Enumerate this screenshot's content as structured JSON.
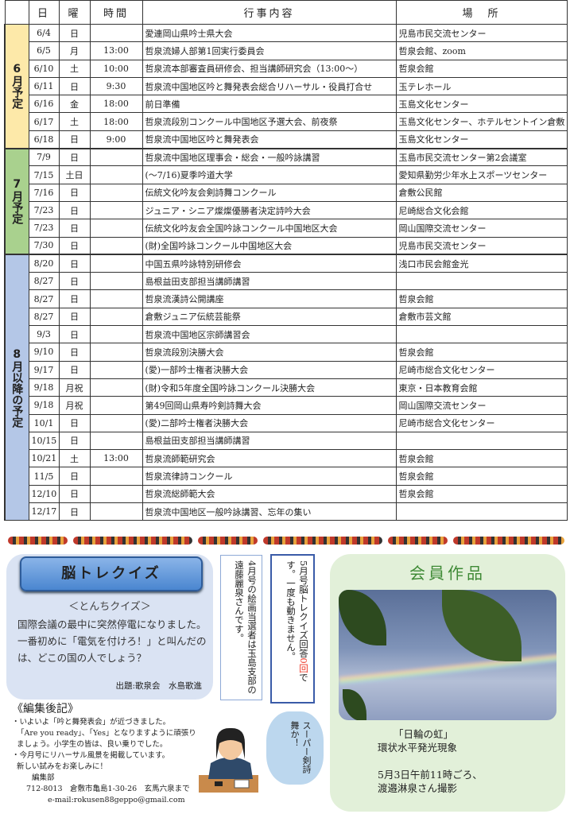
{
  "table": {
    "headers": [
      "",
      "日",
      "曜",
      "時間",
      "行事内容",
      "場　所"
    ],
    "groups": [
      {
        "label": "6月予定",
        "color": "#fde9a9",
        "rows": [
          [
            "6/4",
            "日",
            "",
            "愛連岡山県吟士県大会",
            "児島市民交流センター"
          ],
          [
            "6/5",
            "月",
            "13:00",
            "哲泉流婦人部第1回実行委員会",
            "哲泉会館、zoom"
          ],
          [
            "6/10",
            "土",
            "10:00",
            "哲泉流本部審査員研修会、担当講師研究会（13:00～）",
            "哲泉会館"
          ],
          [
            "6/11",
            "日",
            "9:30",
            "哲泉流中国地区吟と舞発表会総合リハーサル・役員打合せ",
            "玉テレホール"
          ],
          [
            "6/16",
            "金",
            "18:00",
            "前日準備",
            "玉島文化センター"
          ],
          [
            "6/17",
            "土",
            "18:00",
            "哲泉流段別コンクール中国地区予選大会、前夜祭",
            "玉島文化センター、ホテルセントイン倉敷"
          ],
          [
            "6/18",
            "日",
            "9:00",
            "哲泉流中国地区吟と舞発表会",
            "玉島文化センター"
          ]
        ]
      },
      {
        "label": "7月予定",
        "color": "#a9d18e",
        "rows": [
          [
            "7/9",
            "日",
            "",
            "哲泉流中国地区理事会・総会・一般吟詠講習",
            "玉島市民交流センター第2会議室"
          ],
          [
            "7/15",
            "土日",
            "",
            "(～7/16)夏季吟道大学",
            "愛知県勤労少年水上スポーツセンター"
          ],
          [
            "7/16",
            "日",
            "",
            "伝統文化吟友会剣詩舞コンクール",
            "倉敷公民館"
          ],
          [
            "7/23",
            "日",
            "",
            "ジュニア・シニア燦燦優勝者決定詩吟大会",
            "尼崎総合文化会館"
          ],
          [
            "7/23",
            "日",
            "",
            "伝統文化吟友会全国吟詠コンクール中国地区大会",
            "岡山国際交流センター"
          ],
          [
            "7/30",
            "日",
            "",
            "(財)全国吟詠コンクール中国地区大会",
            "児島市民交流センター"
          ]
        ]
      },
      {
        "label": "8月以降の予定",
        "color": "#b4c7e7",
        "rows": [
          [
            "8/20",
            "日",
            "",
            "中国五県吟詠特別研修会",
            "浅口市民会館金光"
          ],
          [
            "8/27",
            "日",
            "",
            "島根益田支部担当講師講習",
            ""
          ],
          [
            "8/27",
            "日",
            "",
            "哲泉流漢詩公開講座",
            "哲泉会館"
          ],
          [
            "8/27",
            "日",
            "",
            "倉敷ジュニア伝統芸能祭",
            "倉敷市芸文館"
          ],
          [
            "9/3",
            "日",
            "",
            "哲泉流中国地区宗師講習会",
            ""
          ],
          [
            "9/10",
            "日",
            "",
            "哲泉流段別決勝大会",
            "哲泉会館"
          ],
          [
            "9/17",
            "日",
            "",
            "(愛)一部吟士権者決勝大会",
            "尼崎市総合文化センター"
          ],
          [
            "9/18",
            "月祝",
            "",
            "(財)令和5年度全国吟詠コンクール決勝大会",
            "東京・日本教育会館"
          ],
          [
            "9/18",
            "月祝",
            "",
            "第49回岡山県寿吟剣詩舞大会",
            "岡山国際交流センター"
          ],
          [
            "10/1",
            "日",
            "",
            "(愛)二部吟士権者決勝大会",
            "尼崎市総合文化センター"
          ],
          [
            "10/15",
            "日",
            "",
            "島根益田支部担当講師講習",
            ""
          ],
          [
            "10/21",
            "土",
            "13:00",
            "哲泉流師範研究会",
            "哲泉会館"
          ],
          [
            "11/5",
            "日",
            "",
            "哲泉流律詩コンクール",
            "哲泉会館"
          ],
          [
            "12/10",
            "日",
            "",
            "哲泉流総師範大会",
            "哲泉会館"
          ],
          [
            "12/17",
            "日",
            "",
            "哲泉流中国地区一般吟詠講習、忘年の集い",
            ""
          ]
        ]
      }
    ]
  },
  "quiz": {
    "title": "脳トレクイズ",
    "subtitle": "＜とんちクイズ＞",
    "question": "国際会議の最中に突然停電になりました。一番初めに「電気を付けろ！」と叫んだのは、どこの国の人でしょう？",
    "author": "出題:歌泉会　水島歌進"
  },
  "winner": "4月号の絵画当選者は玉島支部の遠藤麗泉さんです。",
  "answer": {
    "prefix": "5月号脳トレクイズ回答",
    "highlight": "0回",
    "rest": "です。一度も動きません。"
  },
  "notes": {
    "title": "《編集後記》",
    "lines": [
      "・いよいよ「吟と舞発表会」が近づきました。",
      "「Are you ready」、「Yes」となりますように頑張り",
      "ましょう。小学生の皆は、良い乗りでした。",
      "・今月号にリハーサル風景を掲載しています。",
      "新しい試みをお楽しみに！",
      "編集部",
      "712-8013　倉敷市亀島1-30-26　玄馬六泉まで",
      "e-mail:rokusen88geppo@gmail.com"
    ]
  },
  "bubble": "スーパー剣詩舞か！",
  "member": {
    "title": "会員作品",
    "caption1": "「日輪の虹」",
    "caption2": "環状水平発光現象",
    "caption3": "5月3日午前11時ごろ、",
    "caption4": "渡邉淋泉さん撮影"
  }
}
